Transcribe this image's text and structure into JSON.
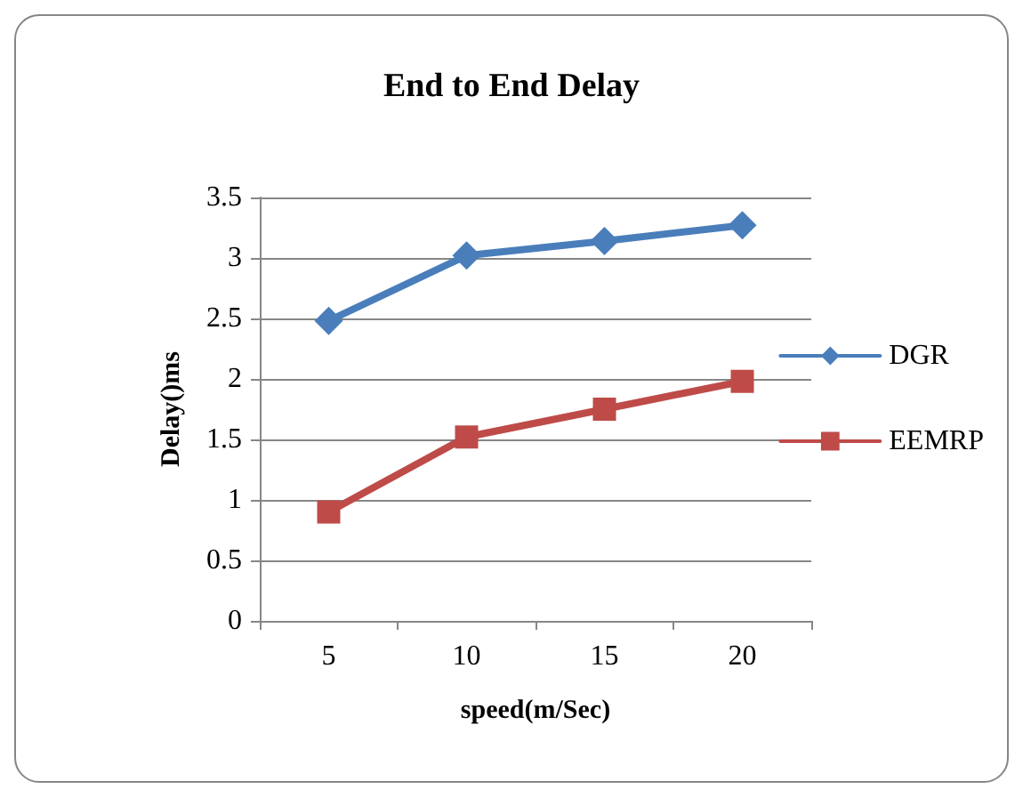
{
  "chart_data": {
    "type": "line",
    "title": "End to End Delay",
    "xlabel": "speed(m/Sec)",
    "ylabel": "Delay()ms",
    "categories": [
      "5",
      "10",
      "15",
      "20"
    ],
    "series": [
      {
        "name": "DGR",
        "color": "#4a7ebb",
        "marker": "diamond",
        "values": [
          2.48,
          3.02,
          3.14,
          3.27
        ]
      },
      {
        "name": "EEMRP",
        "color": "#be4b48",
        "marker": "square",
        "values": [
          0.9,
          1.52,
          1.75,
          1.98
        ]
      }
    ],
    "ylim": [
      0,
      3.5
    ],
    "yticks": [
      0,
      0.5,
      1,
      1.5,
      2,
      2.5,
      3,
      3.5
    ],
    "grid": "y",
    "legend": "right"
  }
}
